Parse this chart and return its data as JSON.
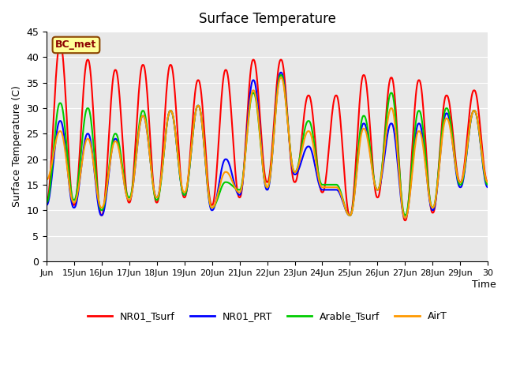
{
  "title": "Surface Temperature",
  "ylabel": "Surface Temperature (C)",
  "xlabel": "Time",
  "annotation": "BC_met",
  "ylim": [
    0,
    45
  ],
  "yticks": [
    0,
    5,
    10,
    15,
    20,
    25,
    30,
    35,
    40,
    45
  ],
  "xtick_labels": [
    "Jun",
    "15Jun",
    "16Jun",
    "17Jun",
    "18Jun",
    "19Jun",
    "20Jun",
    "21Jun",
    "22Jun",
    "23Jun",
    "24Jun",
    "25Jun",
    "26Jun",
    "27Jun",
    "28Jun",
    "29Jun",
    "30"
  ],
  "bg_color": "#e8e8e8",
  "fig_color": "#ffffff",
  "series": {
    "NR01_Tsurf": {
      "color": "#ff0000",
      "lw": 1.5
    },
    "NR01_PRT": {
      "color": "#0000ff",
      "lw": 1.5
    },
    "Arable_Tsurf": {
      "color": "#00cc00",
      "lw": 1.5
    },
    "AirT": {
      "color": "#ff9900",
      "lw": 1.5
    }
  },
  "n_days": 16,
  "pts_per_day": 48,
  "day_peaks_NR01": [
    11.5,
    42.5,
    11.0,
    39.5,
    9.0,
    37.5,
    11.5,
    38.5,
    11.5,
    38.5,
    12.5,
    35.5,
    11.0,
    37.5,
    12.5,
    39.5,
    15.5,
    39.5,
    15.5,
    32.5,
    13.5,
    32.5,
    9.0,
    36.5,
    12.5,
    36.0,
    8.0,
    35.5,
    9.5,
    32.5,
    15.5,
    33.5
  ],
  "day_peaks_PRT": [
    11.0,
    27.5,
    10.5,
    25.0,
    9.0,
    24.0,
    12.0,
    28.5,
    12.5,
    29.5,
    13.0,
    30.5,
    10.0,
    20.0,
    13.0,
    35.5,
    14.0,
    37.0,
    17.0,
    22.5,
    14.0,
    14.0,
    9.0,
    27.0,
    14.0,
    27.0,
    8.5,
    27.0,
    10.0,
    29.0,
    14.5,
    29.5
  ],
  "day_peaks_Arable": [
    11.5,
    31.0,
    12.0,
    30.0,
    10.0,
    25.0,
    12.5,
    29.5,
    12.0,
    29.5,
    13.0,
    30.5,
    10.5,
    15.5,
    14.0,
    33.0,
    14.5,
    36.5,
    17.5,
    27.5,
    15.0,
    15.0,
    9.0,
    28.5,
    14.0,
    33.0,
    9.0,
    29.5,
    10.5,
    30.0,
    15.0,
    29.5
  ],
  "day_peaks_AirT": [
    16.0,
    25.5,
    11.5,
    24.0,
    10.5,
    23.5,
    12.0,
    28.5,
    12.5,
    29.5,
    13.5,
    30.5,
    10.5,
    17.5,
    13.5,
    33.5,
    14.5,
    36.0,
    17.5,
    25.5,
    14.5,
    14.5,
    9.0,
    26.0,
    14.0,
    30.0,
    8.5,
    25.5,
    10.5,
    28.0,
    15.5,
    29.5
  ]
}
